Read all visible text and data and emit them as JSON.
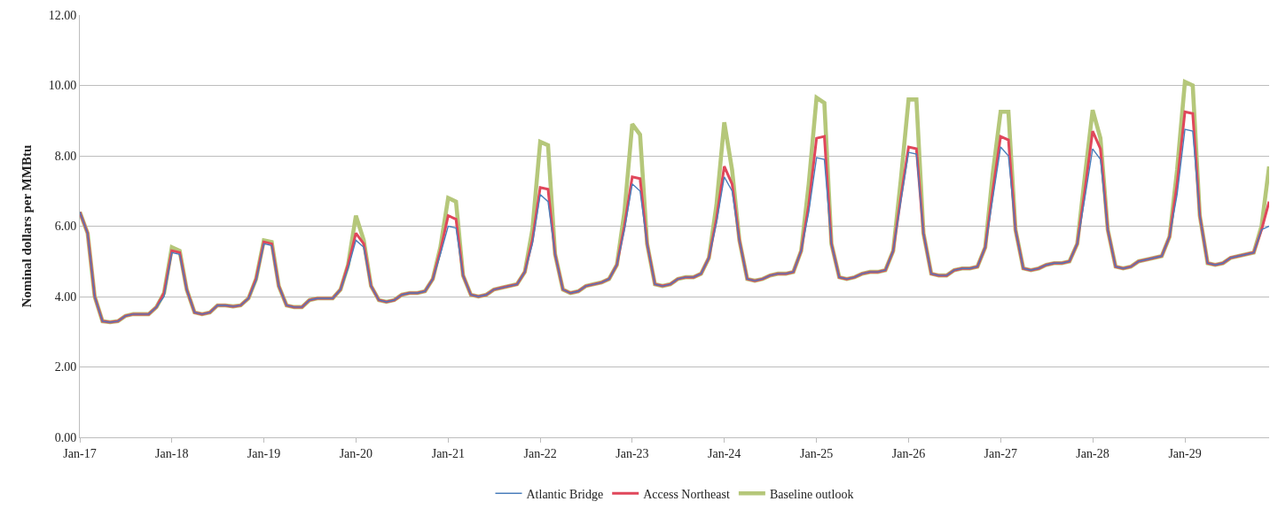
{
  "chart_data": {
    "type": "line",
    "ylabel": "Nominal dollars per MMBtu",
    "x": [
      "2017-01",
      "2017-02",
      "2017-03",
      "2017-04",
      "2017-05",
      "2017-06",
      "2017-07",
      "2017-08",
      "2017-09",
      "2017-10",
      "2017-11",
      "2017-12",
      "2018-01",
      "2018-02",
      "2018-03",
      "2018-04",
      "2018-05",
      "2018-06",
      "2018-07",
      "2018-08",
      "2018-09",
      "2018-10",
      "2018-11",
      "2018-12",
      "2019-01",
      "2019-02",
      "2019-03",
      "2019-04",
      "2019-05",
      "2019-06",
      "2019-07",
      "2019-08",
      "2019-09",
      "2019-10",
      "2019-11",
      "2019-12",
      "2020-01",
      "2020-02",
      "2020-03",
      "2020-04",
      "2020-05",
      "2020-06",
      "2020-07",
      "2020-08",
      "2020-09",
      "2020-10",
      "2020-11",
      "2020-12",
      "2021-01",
      "2021-02",
      "2021-03",
      "2021-04",
      "2021-05",
      "2021-06",
      "2021-07",
      "2021-08",
      "2021-09",
      "2021-10",
      "2021-11",
      "2021-12",
      "2022-01",
      "2022-02",
      "2022-03",
      "2022-04",
      "2022-05",
      "2022-06",
      "2022-07",
      "2022-08",
      "2022-09",
      "2022-10",
      "2022-11",
      "2022-12",
      "2023-01",
      "2023-02",
      "2023-03",
      "2023-04",
      "2023-05",
      "2023-06",
      "2023-07",
      "2023-08",
      "2023-09",
      "2023-10",
      "2023-11",
      "2023-12",
      "2024-01",
      "2024-02",
      "2024-03",
      "2024-04",
      "2024-05",
      "2024-06",
      "2024-07",
      "2024-08",
      "2024-09",
      "2024-10",
      "2024-11",
      "2024-12",
      "2025-01",
      "2025-02",
      "2025-03",
      "2025-04",
      "2025-05",
      "2025-06",
      "2025-07",
      "2025-08",
      "2025-09",
      "2025-10",
      "2025-11",
      "2025-12",
      "2026-01",
      "2026-02",
      "2026-03",
      "2026-04",
      "2026-05",
      "2026-06",
      "2026-07",
      "2026-08",
      "2026-09",
      "2026-10",
      "2026-11",
      "2026-12",
      "2027-01",
      "2027-02",
      "2027-03",
      "2027-04",
      "2027-05",
      "2027-06",
      "2027-07",
      "2027-08",
      "2027-09",
      "2027-10",
      "2027-11",
      "2027-12",
      "2028-01",
      "2028-02",
      "2028-03",
      "2028-04",
      "2028-05",
      "2028-06",
      "2028-07",
      "2028-08",
      "2028-09",
      "2028-10",
      "2028-11",
      "2028-12",
      "2029-01",
      "2029-02",
      "2029-03",
      "2029-04",
      "2029-05",
      "2029-06",
      "2029-07",
      "2029-08",
      "2029-09",
      "2029-10",
      "2029-11",
      "2029-12"
    ],
    "series": [
      {
        "name": "Atlantic Bridge",
        "color": "#4a7ebb",
        "values": [
          6.4,
          5.8,
          4.0,
          3.3,
          3.27,
          3.3,
          3.45,
          3.5,
          3.5,
          3.5,
          3.7,
          4.0,
          5.25,
          5.2,
          4.2,
          3.55,
          3.5,
          3.55,
          3.75,
          3.75,
          3.72,
          3.75,
          3.95,
          4.45,
          5.5,
          5.45,
          4.3,
          3.75,
          3.7,
          3.7,
          3.9,
          3.95,
          3.95,
          3.95,
          4.2,
          4.8,
          5.6,
          5.4,
          4.3,
          3.9,
          3.85,
          3.9,
          4.05,
          4.1,
          4.1,
          4.15,
          4.5,
          5.2,
          6.0,
          5.95,
          4.6,
          4.05,
          4.0,
          4.05,
          4.2,
          4.25,
          4.3,
          4.35,
          4.7,
          5.5,
          6.9,
          6.7,
          5.2,
          4.2,
          4.1,
          4.15,
          4.3,
          4.35,
          4.4,
          4.5,
          4.9,
          5.9,
          7.2,
          7.0,
          5.5,
          4.35,
          4.3,
          4.35,
          4.5,
          4.55,
          4.55,
          4.65,
          5.1,
          6.1,
          7.4,
          7.0,
          5.6,
          4.5,
          4.45,
          4.5,
          4.6,
          4.65,
          4.65,
          4.7,
          5.3,
          6.4,
          7.95,
          7.9,
          5.5,
          4.55,
          4.5,
          4.55,
          4.65,
          4.7,
          4.7,
          4.75,
          5.3,
          6.7,
          8.1,
          8.05,
          5.8,
          4.65,
          4.6,
          4.6,
          4.75,
          4.8,
          4.8,
          4.85,
          5.4,
          6.8,
          8.25,
          8.0,
          5.9,
          4.8,
          4.75,
          4.8,
          4.9,
          4.95,
          4.95,
          5.0,
          5.5,
          6.8,
          8.2,
          7.9,
          5.9,
          4.85,
          4.8,
          4.85,
          5.0,
          5.05,
          5.1,
          5.15,
          5.7,
          6.9,
          8.75,
          8.7,
          6.3,
          4.95,
          4.9,
          4.95,
          5.1,
          5.15,
          5.2,
          5.25,
          5.9,
          6.0
        ]
      },
      {
        "name": "Access Northeast",
        "color": "#e0475b",
        "values": [
          6.4,
          5.8,
          4.0,
          3.3,
          3.27,
          3.3,
          3.45,
          3.5,
          3.5,
          3.5,
          3.7,
          4.1,
          5.3,
          5.25,
          4.2,
          3.55,
          3.5,
          3.55,
          3.75,
          3.75,
          3.72,
          3.75,
          3.95,
          4.5,
          5.55,
          5.5,
          4.3,
          3.75,
          3.7,
          3.7,
          3.9,
          3.95,
          3.95,
          3.95,
          4.2,
          4.9,
          5.8,
          5.5,
          4.3,
          3.9,
          3.85,
          3.9,
          4.05,
          4.1,
          4.1,
          4.15,
          4.5,
          5.3,
          6.3,
          6.2,
          4.6,
          4.05,
          4.0,
          4.05,
          4.2,
          4.25,
          4.3,
          4.35,
          4.7,
          5.6,
          7.1,
          7.05,
          5.2,
          4.2,
          4.1,
          4.15,
          4.3,
          4.35,
          4.4,
          4.5,
          4.9,
          6.0,
          7.4,
          7.35,
          5.5,
          4.35,
          4.3,
          4.35,
          4.5,
          4.55,
          4.55,
          4.65,
          5.1,
          6.2,
          7.7,
          7.2,
          5.6,
          4.5,
          4.45,
          4.5,
          4.6,
          4.65,
          4.65,
          4.7,
          5.3,
          6.6,
          8.5,
          8.55,
          5.5,
          4.55,
          4.5,
          4.55,
          4.65,
          4.7,
          4.7,
          4.75,
          5.3,
          6.8,
          8.25,
          8.2,
          5.8,
          4.65,
          4.6,
          4.6,
          4.75,
          4.8,
          4.8,
          4.85,
          5.4,
          7.0,
          8.55,
          8.45,
          5.9,
          4.8,
          4.75,
          4.8,
          4.9,
          4.95,
          4.95,
          5.0,
          5.5,
          7.0,
          8.7,
          8.2,
          5.9,
          4.85,
          4.8,
          4.85,
          5.0,
          5.05,
          5.1,
          5.15,
          5.7,
          7.2,
          9.25,
          9.2,
          6.3,
          4.95,
          4.9,
          4.95,
          5.1,
          5.15,
          5.2,
          5.25,
          5.9,
          6.7
        ]
      },
      {
        "name": "Baseline outlook",
        "color": "#b5c77a",
        "values": [
          6.4,
          5.8,
          4.0,
          3.3,
          3.27,
          3.3,
          3.45,
          3.5,
          3.5,
          3.5,
          3.7,
          4.1,
          5.4,
          5.3,
          4.2,
          3.55,
          3.5,
          3.55,
          3.75,
          3.75,
          3.72,
          3.75,
          3.95,
          4.5,
          5.6,
          5.55,
          4.3,
          3.75,
          3.7,
          3.7,
          3.9,
          3.95,
          3.95,
          3.95,
          4.2,
          4.9,
          6.3,
          5.6,
          4.3,
          3.9,
          3.85,
          3.9,
          4.05,
          4.1,
          4.1,
          4.15,
          4.5,
          5.4,
          6.8,
          6.7,
          4.6,
          4.05,
          4.0,
          4.05,
          4.2,
          4.25,
          4.3,
          4.35,
          4.7,
          5.9,
          8.4,
          8.3,
          5.2,
          4.2,
          4.1,
          4.15,
          4.3,
          4.35,
          4.4,
          4.5,
          4.9,
          6.4,
          8.9,
          8.6,
          5.5,
          4.35,
          4.3,
          4.35,
          4.5,
          4.55,
          4.55,
          4.65,
          5.1,
          6.6,
          8.95,
          7.6,
          5.6,
          4.5,
          4.45,
          4.5,
          4.6,
          4.65,
          4.65,
          4.7,
          5.3,
          7.2,
          9.65,
          9.5,
          5.5,
          4.55,
          4.5,
          4.55,
          4.65,
          4.7,
          4.7,
          4.75,
          5.3,
          7.3,
          9.6,
          9.6,
          5.8,
          4.65,
          4.6,
          4.6,
          4.75,
          4.8,
          4.8,
          4.85,
          5.4,
          7.5,
          9.25,
          9.25,
          5.9,
          4.8,
          4.75,
          4.8,
          4.9,
          4.95,
          4.95,
          5.0,
          5.5,
          7.4,
          9.3,
          8.5,
          5.9,
          4.85,
          4.8,
          4.85,
          5.0,
          5.05,
          5.1,
          5.15,
          5.7,
          7.6,
          10.1,
          10.0,
          6.3,
          4.95,
          4.9,
          4.95,
          5.1,
          5.15,
          5.2,
          5.25,
          6.0,
          7.7
        ]
      }
    ],
    "xlim": [
      "2017-01",
      "2029-12"
    ],
    "xticks": [
      {
        "value": "2017-01",
        "label": "Jan-17"
      },
      {
        "value": "2018-01",
        "label": "Jan-18"
      },
      {
        "value": "2019-01",
        "label": "Jan-19"
      },
      {
        "value": "2020-01",
        "label": "Jan-20"
      },
      {
        "value": "2021-01",
        "label": "Jan-21"
      },
      {
        "value": "2022-01",
        "label": "Jan-22"
      },
      {
        "value": "2023-01",
        "label": "Jan-23"
      },
      {
        "value": "2024-01",
        "label": "Jan-24"
      },
      {
        "value": "2025-01",
        "label": "Jan-25"
      },
      {
        "value": "2026-01",
        "label": "Jan-26"
      },
      {
        "value": "2027-01",
        "label": "Jan-27"
      },
      {
        "value": "2028-01",
        "label": "Jan-28"
      },
      {
        "value": "2029-01",
        "label": "Jan-29"
      }
    ],
    "ylim": [
      0,
      12
    ],
    "yticks": [
      {
        "value": 0,
        "label": "0.00"
      },
      {
        "value": 2,
        "label": "2.00"
      },
      {
        "value": 4,
        "label": "4.00"
      },
      {
        "value": 6,
        "label": "6.00"
      },
      {
        "value": 8,
        "label": "8.00"
      },
      {
        "value": 10,
        "label": "10.00"
      },
      {
        "value": 12,
        "label": "12.00"
      }
    ],
    "grid": "y",
    "legend": "bottom",
    "marker": "none",
    "line_style": "solid"
  }
}
